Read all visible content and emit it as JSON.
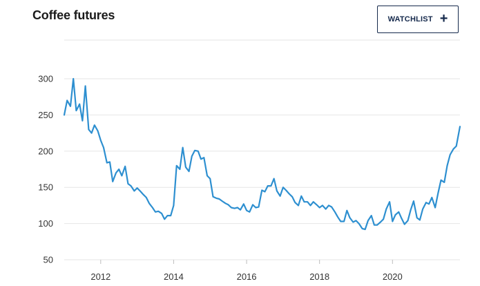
{
  "header": {
    "title": "Coffee futures",
    "watchlist_label": "WATCHLIST",
    "watchlist_icon": "plus-icon"
  },
  "colors": {
    "line": "#2d8fd0",
    "grid": "#e6e6e6",
    "button_border": "#14284b"
  },
  "chart_data": {
    "type": "line",
    "title": "Coffee futures",
    "xlabel": "",
    "ylabel": "",
    "ylim": [
      50,
      320
    ],
    "xlim": [
      2011.0,
      2021.85
    ],
    "grid": "horizontal",
    "yticks": [
      "50",
      "100",
      "150",
      "200",
      "250",
      "300"
    ],
    "xticks": [
      "2012",
      "2014",
      "2016",
      "2018",
      "2020"
    ],
    "series": [
      {
        "x": [
          2011.0,
          2011.08,
          2011.17,
          2011.25,
          2011.33,
          2011.42,
          2011.5,
          2011.58,
          2011.67,
          2011.75,
          2011.83,
          2011.92,
          2012.0,
          2012.08,
          2012.17,
          2012.25,
          2012.33,
          2012.42,
          2012.5,
          2012.58,
          2012.67,
          2012.75,
          2012.83,
          2012.92,
          2013.0,
          2013.08,
          2013.17,
          2013.25,
          2013.33,
          2013.42,
          2013.5,
          2013.58,
          2013.67,
          2013.75,
          2013.83,
          2013.92,
          2014.0,
          2014.08,
          2014.17,
          2014.25,
          2014.33,
          2014.42,
          2014.5,
          2014.58,
          2014.67,
          2014.75,
          2014.83,
          2014.92,
          2015.0,
          2015.08,
          2015.17,
          2015.25,
          2015.33,
          2015.42,
          2015.5,
          2015.58,
          2015.67,
          2015.75,
          2015.83,
          2015.92,
          2016.0,
          2016.08,
          2016.17,
          2016.25,
          2016.33,
          2016.42,
          2016.5,
          2016.58,
          2016.67,
          2016.75,
          2016.83,
          2016.92,
          2017.0,
          2017.08,
          2017.17,
          2017.25,
          2017.33,
          2017.42,
          2017.5,
          2017.58,
          2017.67,
          2017.75,
          2017.83,
          2017.92,
          2018.0,
          2018.08,
          2018.17,
          2018.25,
          2018.33,
          2018.42,
          2018.5,
          2018.58,
          2018.67,
          2018.75,
          2018.83,
          2018.92,
          2019.0,
          2019.08,
          2019.17,
          2019.25,
          2019.33,
          2019.42,
          2019.5,
          2019.58,
          2019.67,
          2019.75,
          2019.83,
          2019.92,
          2020.0,
          2020.08,
          2020.17,
          2020.25,
          2020.33,
          2020.42,
          2020.5,
          2020.58,
          2020.67,
          2020.75,
          2020.83,
          2020.92,
          2021.0,
          2021.08,
          2021.17,
          2021.25,
          2021.33,
          2021.42,
          2021.5,
          2021.58,
          2021.67,
          2021.75,
          2021.85
        ],
        "values": [
          250,
          270,
          262,
          300,
          256,
          265,
          242,
          290,
          230,
          225,
          236,
          228,
          215,
          205,
          184,
          185,
          158,
          170,
          175,
          166,
          179,
          155,
          152,
          145,
          149,
          145,
          140,
          136,
          128,
          122,
          116,
          117,
          114,
          106,
          111,
          111,
          125,
          180,
          175,
          205,
          178,
          172,
          193,
          201,
          200,
          189,
          191,
          166,
          162,
          137,
          135,
          134,
          131,
          128,
          126,
          122,
          121,
          122,
          119,
          127,
          118,
          116,
          126,
          122,
          123,
          146,
          144,
          152,
          152,
          162,
          145,
          138,
          150,
          146,
          141,
          137,
          129,
          125,
          138,
          130,
          130,
          125,
          130,
          126,
          122,
          125,
          120,
          125,
          123,
          116,
          109,
          103,
          103,
          118,
          108,
          102,
          104,
          100,
          93,
          92,
          104,
          111,
          98,
          98,
          102,
          106,
          120,
          130,
          103,
          112,
          116,
          107,
          99,
          104,
          119,
          131,
          108,
          105,
          120,
          129,
          127,
          136,
          122,
          142,
          160,
          157,
          180,
          195,
          203,
          207,
          234
        ]
      }
    ]
  }
}
